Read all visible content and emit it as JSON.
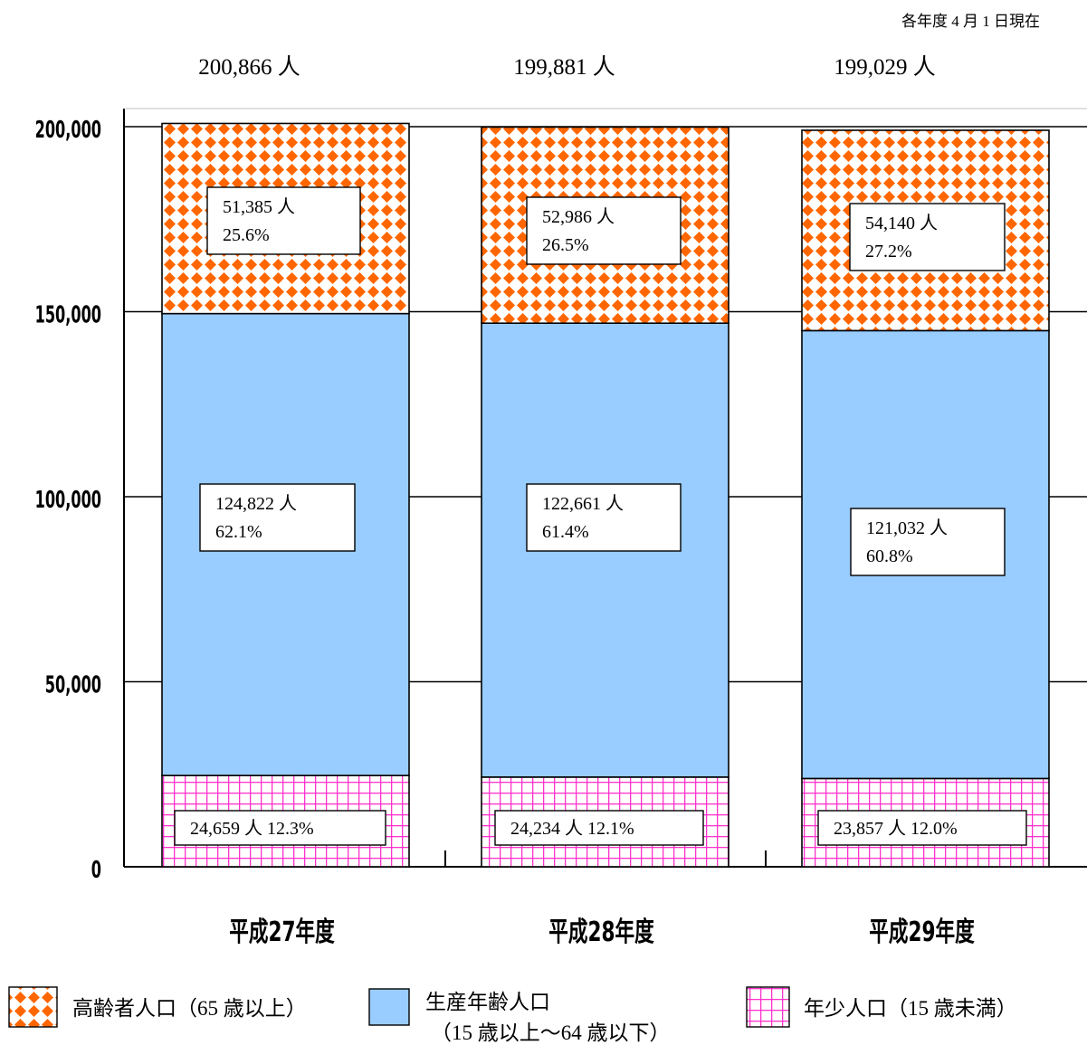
{
  "note": "各年度 4 月 1 日現在",
  "chart_data": {
    "type": "bar",
    "stacked": true,
    "categories": [
      "平成27年度",
      "平成28年度",
      "平成29年度"
    ],
    "totals": [
      200866,
      199881,
      199029
    ],
    "total_labels": [
      "200,866 人",
      "199,881 人",
      "199,029 人"
    ],
    "ylim": [
      0,
      200000
    ],
    "yticks": [
      0,
      50000,
      100000,
      150000,
      200000
    ],
    "ytick_labels": [
      "0",
      "50,000",
      "100,000",
      "150,000",
      "200,000"
    ],
    "grid": true,
    "series": [
      {
        "name": "年少人口（15 歳未満）",
        "values": [
          24659,
          24234,
          23857
        ],
        "labels": [
          "24,659 人 12.3%",
          "24,234 人 12.1%",
          "23,857 人 12.0%"
        ],
        "color": "#ff33cc",
        "pattern": "grid"
      },
      {
        "name": "生産年齢人口（15 歳以上～64 歳以下）",
        "values": [
          124822,
          122661,
          121032
        ],
        "counts": [
          "124,822 人",
          "122,661 人",
          "121,032 人"
        ],
        "percents": [
          "62.1%",
          "61.4%",
          "60.8%"
        ],
        "color": "#99ccff",
        "pattern": "solid"
      },
      {
        "name": "高齢者人口（65 歳以上）",
        "values": [
          51385,
          52986,
          54140
        ],
        "counts": [
          "51,385 人",
          "52,986 人",
          "54,140 人"
        ],
        "percents": [
          "25.6%",
          "26.5%",
          "27.2%"
        ],
        "color": "#ff6600",
        "pattern": "diamond"
      }
    ],
    "legend": {
      "placement": "bottom",
      "items": [
        {
          "line1": "高齢者人口（65 歳以上）",
          "line2": ""
        },
        {
          "line1": "生産年齢人口",
          "line2": "（15 歳以上～64 歳以下）"
        },
        {
          "line1": "年少人口（15 歳未満）",
          "line2": ""
        }
      ]
    }
  }
}
